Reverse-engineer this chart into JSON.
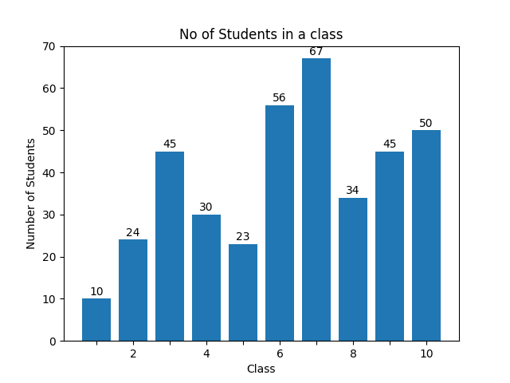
{
  "classes": [
    1,
    2,
    3,
    4,
    5,
    6,
    7,
    8,
    9,
    10
  ],
  "students": [
    10,
    24,
    45,
    30,
    23,
    56,
    67,
    34,
    45,
    50
  ],
  "bar_color": "#2077b4",
  "title": "No of Students in a class",
  "xlabel": "Class",
  "ylabel": "Number of Students",
  "ylim": [
    0,
    70
  ],
  "title_fontsize": 12,
  "label_fontsize": 10,
  "bar_width": 0.8,
  "xtick_labels": [
    "",
    "2",
    "",
    "4",
    "",
    "6",
    "",
    "8",
    "",
    "10"
  ]
}
